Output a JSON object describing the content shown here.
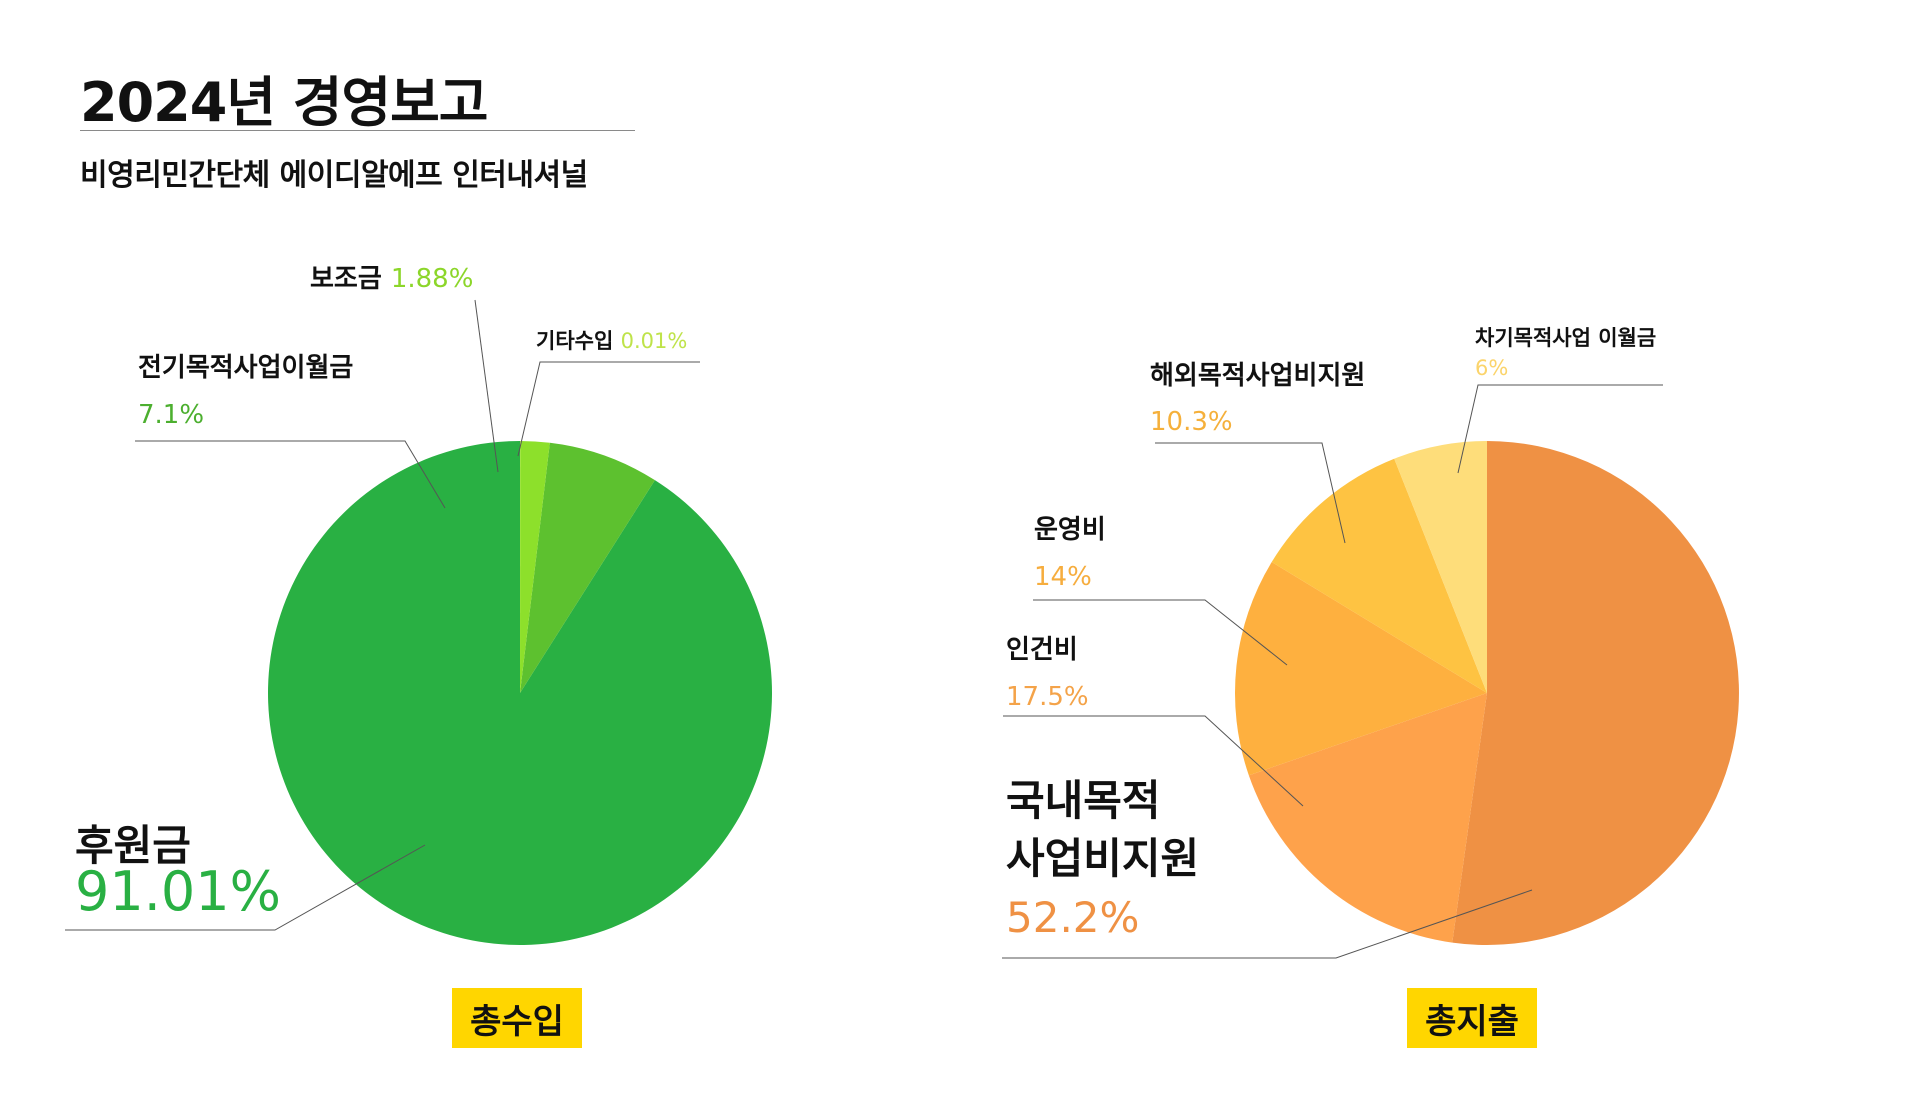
{
  "page": {
    "title": "2024년 경영보고",
    "subtitle": "비영리민간단체 에이디알에프 인터내셔널"
  },
  "badges": {
    "income": "총수입",
    "expense": "총지출"
  },
  "chart_data": [
    {
      "type": "pie",
      "title": "총수입",
      "slices": [
        {
          "name": "후원금",
          "value_label": "91.01%",
          "value": 91.01,
          "color": "#29b043"
        },
        {
          "name": "전기목적사업이월금",
          "value_label": "7.1%",
          "value": 7.1,
          "color": "#5dc12f"
        },
        {
          "name": "보조금",
          "value_label": "1.88%",
          "value": 1.88,
          "color": "#8de02b"
        },
        {
          "name": "기타수입",
          "value_label": "0.01%",
          "value": 0.01,
          "color": "#c8f03c"
        }
      ],
      "label_colors": [
        "#29b043",
        "#4caf2f",
        "#8cd62a",
        "#bfe34a"
      ]
    },
    {
      "type": "pie",
      "title": "총지출",
      "slices": [
        {
          "name": "국내목적사업비지원",
          "value_label": "52.2%",
          "value": 52.2,
          "color": "#ef9144"
        },
        {
          "name": "인건비",
          "value_label": "17.5%",
          "value": 17.5,
          "color": "#fea24b"
        },
        {
          "name": "운영비",
          "value_label": "14%",
          "value": 14,
          "color": "#feb03f"
        },
        {
          "name": "해외목적사업비지원",
          "value_label": "10.3%",
          "value": 10.3,
          "color": "#fec342"
        },
        {
          "name": "차기목적사업 이월금",
          "value_label": "6%",
          "value": 6,
          "color": "#fedd7a"
        }
      ],
      "label_colors": [
        "#ef9144",
        "#f4a349",
        "#f6ad3e",
        "#f5b03b",
        "#fbd46b"
      ]
    }
  ]
}
